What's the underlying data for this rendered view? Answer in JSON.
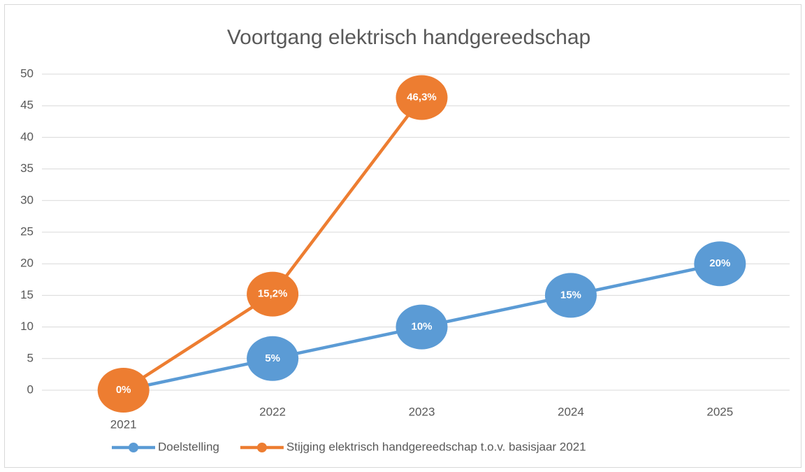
{
  "chart_data": {
    "type": "line",
    "title": "Voortgang elektrisch handgereedschap",
    "categories": [
      "2021",
      "2022",
      "2023",
      "2024",
      "2025"
    ],
    "series": [
      {
        "name": "Doelstelling",
        "color": "#5b9bd5",
        "values": [
          0,
          5,
          10,
          15,
          20
        ],
        "value_labels": [
          null,
          "5%",
          "10%",
          "15%",
          "20%"
        ]
      },
      {
        "name": "Stijging elektrisch handgereedschap t.o.v. basisjaar 2021",
        "color": "#ed7d31",
        "values": [
          0,
          15.2,
          46.3,
          null,
          null
        ],
        "value_labels": [
          "0%",
          "15,2%",
          "46,3%",
          null,
          null
        ]
      }
    ],
    "ylim": [
      0,
      50
    ],
    "yticks": [
      0,
      5,
      10,
      15,
      20,
      25,
      30,
      35,
      40,
      45,
      50
    ],
    "grid": true,
    "legend": "bottom"
  }
}
